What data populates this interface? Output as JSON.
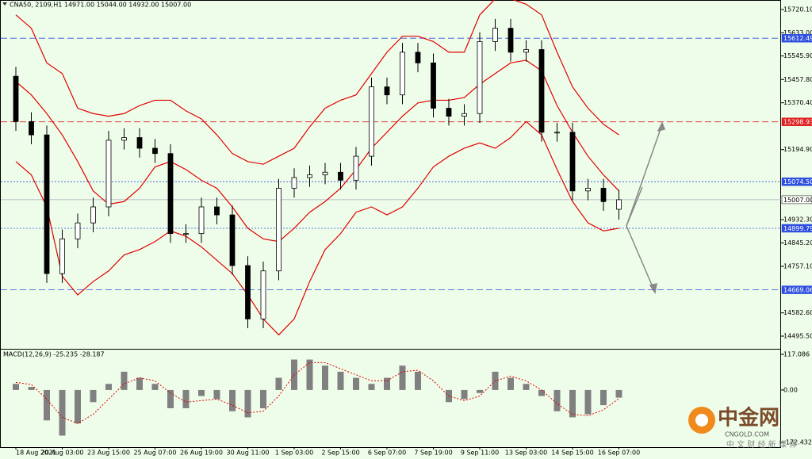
{
  "chart_data": [
    {
      "type": "candlestick",
      "title": "CNA50, 2109,H1  14971.00 15044.00 14932.00 15007.00",
      "categories": [
        "18 Aug 2021",
        null,
        null,
        "20 Aug 03:00",
        null,
        null,
        "23 Aug 15:00",
        null,
        null,
        "25 Aug 07:00",
        null,
        null,
        "26 Aug 19:00",
        null,
        null,
        "30 Aug 11:00",
        null,
        null,
        "1 Sep 03:00",
        null,
        null,
        "2 Sep 15:00",
        null,
        null,
        "6 Sep 07:00",
        null,
        null,
        "7 Sep 19:00",
        null,
        null,
        "9 Sep 11:00",
        null,
        null,
        "13 Sep 03:00",
        null,
        null,
        "14 Sep 15:00",
        null,
        null,
        "16 Sep 07:00"
      ],
      "open": [
        15470,
        15300,
        15250,
        14730,
        14860,
        14920,
        14980,
        15230,
        15240,
        15200,
        15180,
        14880,
        14880,
        14980,
        14950,
        14760,
        14560,
        14740,
        15050,
        15090,
        15100,
        15110,
        15080,
        15170,
        15430,
        15400,
        15560,
        15520,
        15350,
        15320,
        15330,
        15600,
        15650,
        15560,
        15570,
        15260,
        15260,
        15040,
        15050,
        14971
      ],
      "high": [
        15505,
        15335,
        15285,
        14895,
        14955,
        15015,
        15265,
        15275,
        15275,
        15235,
        15215,
        14915,
        15015,
        15015,
        14985,
        14795,
        14775,
        15085,
        15125,
        15135,
        15145,
        15145,
        15205,
        15465,
        15465,
        15595,
        15595,
        15555,
        15385,
        15365,
        15635,
        15685,
        15685,
        15605,
        15605,
        15295,
        15295,
        15085,
        15085,
        15044
      ],
      "low": [
        15265,
        15215,
        14695,
        14695,
        14825,
        14885,
        14945,
        15195,
        15165,
        15145,
        14845,
        14845,
        14845,
        14915,
        14725,
        14525,
        14525,
        14705,
        15015,
        15055,
        15065,
        15045,
        15045,
        15135,
        15365,
        15365,
        15485,
        15315,
        15285,
        15285,
        15295,
        15565,
        15525,
        15525,
        15225,
        15225,
        15005,
        15005,
        14965,
        14932
      ],
      "close": [
        15300,
        15250,
        14730,
        14860,
        14920,
        14980,
        15230,
        15240,
        15200,
        15180,
        14880,
        14880,
        14980,
        14950,
        14760,
        14560,
        14740,
        15050,
        15090,
        15100,
        15110,
        15080,
        15170,
        15430,
        15400,
        15560,
        15520,
        15350,
        15320,
        15330,
        15600,
        15650,
        15560,
        15570,
        15260,
        15260,
        15040,
        15050,
        15000,
        15007
      ],
      "lines": [
        {
          "color": "#e00000",
          "values": [
            15700,
            15650,
            15520,
            15480,
            15350,
            15330,
            15320,
            15330,
            15360,
            15380,
            15380,
            15340,
            15310,
            15250,
            15180,
            15150,
            15140,
            15170,
            15200,
            15280,
            15350,
            15380,
            15400,
            15480,
            15560,
            15620,
            15620,
            15600,
            15560,
            15560,
            15700,
            15760,
            15760,
            15740,
            15700,
            15560,
            15430,
            15350,
            15290,
            15250
          ]
        },
        {
          "color": "#e00000",
          "values": [
            15450,
            15400,
            15330,
            15250,
            15150,
            15040,
            14990,
            15000,
            15050,
            15130,
            15150,
            15120,
            15080,
            15050,
            14980,
            14900,
            14860,
            14850,
            14900,
            14960,
            15000,
            15050,
            15120,
            15200,
            15260,
            15320,
            15370,
            15380,
            15380,
            15390,
            15440,
            15480,
            15520,
            15530,
            15490,
            15360,
            15260,
            15170,
            15100,
            15040
          ]
        },
        {
          "color": "#e00000",
          "values": [
            15150,
            15100,
            14980,
            14720,
            14650,
            14700,
            14740,
            14800,
            14820,
            14850,
            14890,
            14870,
            14830,
            14780,
            14730,
            14650,
            14560,
            14500,
            14560,
            14700,
            14820,
            14880,
            14960,
            14980,
            14950,
            14980,
            15050,
            15130,
            15170,
            15200,
            15220,
            15200,
            15240,
            15300,
            15250,
            15120,
            15000,
            14920,
            14890,
            14900
          ]
        }
      ],
      "levels": [
        {
          "value": 15612.49,
          "color": "#2f4fe0",
          "dash": "dashed"
        },
        {
          "value": 15298.93,
          "color": "#e02020",
          "dash": "dashed"
        },
        {
          "value": 15074.5,
          "label": "15074.50",
          "color": "#2f4fe0",
          "dash": "dotted"
        },
        {
          "value": 15007,
          "label": "15007.00",
          "color": "#ffffff",
          "dash": "solid"
        },
        {
          "value": 14899.79,
          "color": "#2f4fe0",
          "dash": "dotted"
        },
        {
          "value": 14669.06,
          "color": "#2f4fe0",
          "dash": "dashed"
        }
      ],
      "ylim": [
        14447.9,
        15755.8
      ],
      "yticks": [
        {
          "value": 15720.1,
          "label": "15720.10"
        },
        {
          "value": 15633,
          "label": "15633.00"
        },
        {
          "value": 15545.9,
          "label": "15545.90"
        },
        {
          "value": 15457.8,
          "label": "15457.80"
        },
        {
          "value": 15370.4,
          "label": "15370.40"
        },
        {
          "value": 15194.9,
          "label": "15194.90"
        },
        {
          "value": 14932.3,
          "label": "14932.30"
        },
        {
          "value": 14845.2,
          "label": "14845.20"
        },
        {
          "value": 14757.1,
          "label": "14757.10"
        },
        {
          "value": 14582.6,
          "label": "14582.60"
        },
        {
          "value": 14495.5,
          "label": "14495.50"
        }
      ]
    },
    {
      "type": "macd",
      "title": "MACD(12,26,9) -25.235 -28.187",
      "values": [
        20,
        10,
        -100,
        -150,
        -110,
        -40,
        20,
        60,
        40,
        20,
        -60,
        -60,
        -20,
        -30,
        -70,
        -90,
        -60,
        40,
        100,
        100,
        80,
        60,
        40,
        20,
        40,
        80,
        60,
        0,
        -40,
        -30,
        -10,
        60,
        40,
        20,
        -20,
        -70,
        -90,
        -80,
        -50,
        -25.235
      ],
      "signal": [
        25,
        18,
        -30,
        -90,
        -110,
        -80,
        -30,
        20,
        40,
        30,
        -10,
        -40,
        -35,
        -30,
        -50,
        -75,
        -70,
        -20,
        50,
        90,
        90,
        70,
        50,
        30,
        30,
        60,
        65,
        30,
        -20,
        -35,
        -20,
        30,
        45,
        30,
        0,
        -45,
        -80,
        -85,
        -65,
        -28.187
      ],
      "color": "#808080",
      "signal_color": "#e00000",
      "ylim": [
        -190.4,
        135.3
      ],
      "yticks": [
        117.086,
        {
          "value": 0,
          "label": "0.00"
        },
        {
          "value": -172.432,
          "label": "-172.432"
        }
      ]
    }
  ],
  "watermark": {
    "name": "中金网",
    "site": "CNGOLD.COM",
    "slogan": "中 文 财 经 新 媒 体"
  }
}
